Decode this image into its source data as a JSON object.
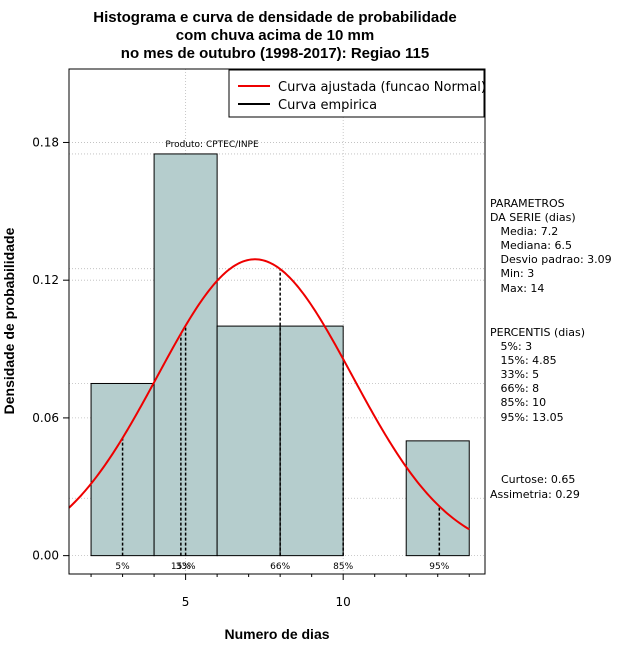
{
  "chart_data": {
    "type": "bar",
    "title_lines": [
      "Histograma e curva de densidade de probabilidade",
      "com chuva acima de 10 mm",
      "no mes de outubro (1998-2017): Regiao 115"
    ],
    "xlabel": "Numero de dias",
    "ylabel": "Densidade de probabilidade",
    "xlim": [
      1.3,
      14.5
    ],
    "ylim": [
      -0.008,
      0.212
    ],
    "x_ticks": [
      5,
      10
    ],
    "y_ticks": [
      0.0,
      0.06,
      0.12,
      0.18
    ],
    "y_tick_labels": [
      "0.00",
      "0.06",
      "0.12",
      "0.18"
    ],
    "grid": true,
    "bins": [
      {
        "x0": 2,
        "x1": 4,
        "density": 0.075
      },
      {
        "x0": 4,
        "x1": 6,
        "density": 0.175
      },
      {
        "x0": 6,
        "x1": 8,
        "density": 0.1
      },
      {
        "x0": 8,
        "x1": 10,
        "density": 0.1
      },
      {
        "x0": 10,
        "x1": 12,
        "density": 0.0
      },
      {
        "x0": 12,
        "x1": 14,
        "density": 0.05
      }
    ],
    "fitted_curve": {
      "distribution": "normal",
      "mean": 7.2,
      "sd": 3.09
    },
    "percentile_lines": [
      {
        "label": "5%",
        "x": 3
      },
      {
        "label": "15%",
        "x": 4.85
      },
      {
        "label": "33%",
        "x": 5
      },
      {
        "label": "66%",
        "x": 8
      },
      {
        "label": "85%",
        "x": 10
      },
      {
        "label": "95%",
        "x": 13.05
      }
    ],
    "legend": {
      "placement": "top-right",
      "items": [
        {
          "name": "Curva ajustada (funcao Normal)",
          "color": "#ee0000"
        },
        {
          "name": "Curva empirica",
          "color": "#000000"
        }
      ]
    },
    "credit": "Produto: CPTEC/INPE",
    "colors": {
      "bar_fill": "#b5cdcd",
      "bar_stroke": "#000000",
      "curve": "#ee0000",
      "grid": "#bbbbbb"
    }
  },
  "side_panel": {
    "parametros": [
      "PARAMETROS",
      "DA SERIE (dias)",
      "   Media: 7.2",
      "   Mediana: 6.5",
      "   Desvio padrao: 3.09",
      "   Min: 3",
      "   Max: 14"
    ],
    "percentis": [
      "PERCENTIS (dias)",
      "   5%: 3",
      "   15%: 4.85",
      "   33%: 5",
      "   66%: 8",
      "   85%: 10",
      "   95%: 13.05"
    ],
    "stats": [
      "Curtose: 0.65",
      "Assimetria: 0.29"
    ]
  }
}
